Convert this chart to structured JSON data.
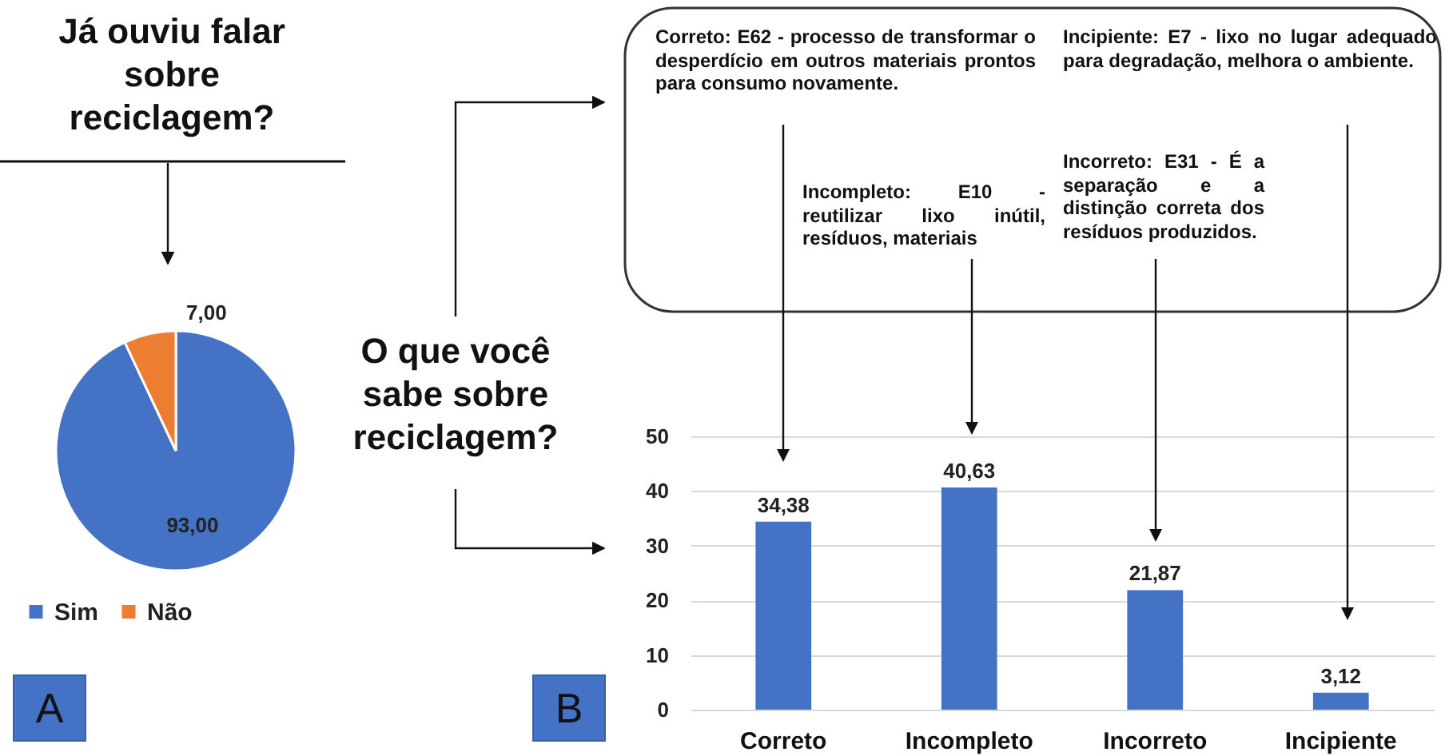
{
  "chart_data": [
    {
      "type": "pie",
      "title": "Já ouviu falar sobre reciclagem?",
      "categories": [
        "Sim",
        "Não"
      ],
      "values": [
        93,
        7
      ],
      "colors": [
        "#4472c4",
        "#ed7d31"
      ],
      "value_labels": [
        "93,00",
        "7,00"
      ],
      "legend": "bottom",
      "annotations": [
        "A"
      ]
    },
    {
      "type": "bar",
      "title": "O que você sabe sobre reciclagem?",
      "categories": [
        "Correto",
        "Incompleto",
        "Incorreto",
        "Incipiente"
      ],
      "values": [
        34.38,
        40.63,
        21.87,
        3.12
      ],
      "value_labels": [
        "34,38",
        "40,63",
        "21,87",
        "3,12"
      ],
      "color": "#4472c4",
      "ylim": [
        0,
        50
      ],
      "yticks": [
        0,
        10,
        20,
        30,
        40,
        50
      ],
      "grid": "y",
      "annotations": [
        "Correto: E62 - processo de transformar o desperdício em outros materiais prontos para consumo novamente.",
        "Incompleto: E10 - reutilizar lixo inútil, resíduos, materiais",
        "Incorreto: E31 - É a separação e a distinção correta dos resíduos produzidos.",
        "Incipiente: E7 - lixo no lugar adequado para degradação, melhora o ambiente.",
        "B"
      ]
    }
  ]
}
